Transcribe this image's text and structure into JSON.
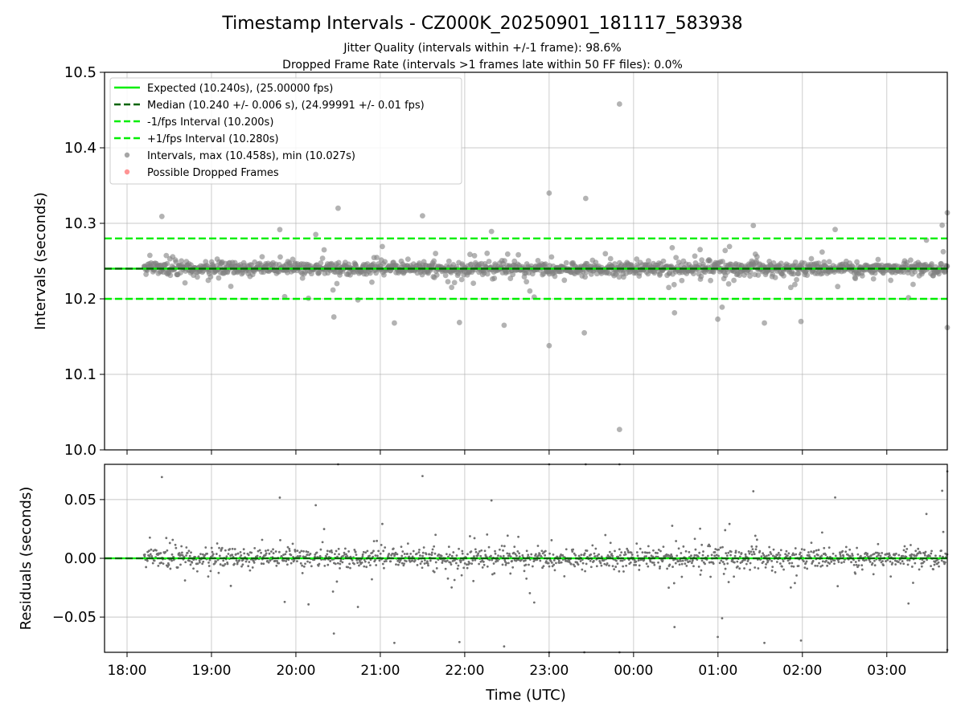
{
  "chart_data": [
    {
      "panel": "intervals",
      "type": "scatter",
      "title": "Timestamp Intervals - CZ000K_20250901_181117_583938",
      "subtitle_lines": [
        "Jitter Quality (intervals within +/-1 frame): 98.6%",
        "Dropped Frame Rate (intervals >1 frames late within 50 FF files): 0.0%"
      ],
      "xlabel": "",
      "ylabel": "Intervals (seconds)",
      "x_axis": "time (UTC)",
      "xlim": [
        "17:44",
        "03:43"
      ],
      "ylim": [
        10.0,
        10.5
      ],
      "yticks": [
        10.0,
        10.1,
        10.2,
        10.3,
        10.4,
        10.5
      ],
      "ytick_labels": [
        "10.0",
        "10.1",
        "10.2",
        "10.3",
        "10.4",
        "10.5"
      ],
      "xticks": [
        "18:00",
        "19:00",
        "20:00",
        "21:00",
        "22:00",
        "23:00",
        "00:00",
        "01:00",
        "02:00",
        "03:00"
      ],
      "grid": true,
      "legend_position": "upper left",
      "reference_lines": [
        {
          "label": "Expected (10.240s), (25.00000 fps)",
          "y": 10.24,
          "color": "#00ee00",
          "style": "solid"
        },
        {
          "label": "Median (10.240 +/- 0.006 s), (24.99991 +/- 0.01 fps)",
          "y": 10.24,
          "color": "#006400",
          "style": "dashed"
        },
        {
          "label": "-1/fps Interval (10.200s)",
          "y": 10.2,
          "color": "#00ee00",
          "style": "dashed"
        },
        {
          "label": "+1/fps Interval (10.280s)",
          "y": 10.28,
          "color": "#00ee00",
          "style": "dashed"
        }
      ],
      "scatter_series": [
        {
          "label": "Intervals, max (10.458s), min (10.027s)",
          "color": "#808080",
          "baseline": 10.24,
          "max": 10.458,
          "min": 10.027,
          "x_start": "18:12",
          "x_end": "03:43"
        },
        {
          "label": "Possible Dropped Frames",
          "color": "#ff6666",
          "count": 0
        }
      ],
      "notable_points": [
        {
          "x": "23:50",
          "y": 10.458
        },
        {
          "x": "23:50",
          "y": 10.027
        },
        {
          "x": "23:00",
          "y": 10.34
        },
        {
          "x": "23:00",
          "y": 10.138
        },
        {
          "x": "23:26",
          "y": 10.333
        },
        {
          "x": "20:30",
          "y": 10.32
        },
        {
          "x": "21:30",
          "y": 10.31
        },
        {
          "x": "20:27",
          "y": 10.176
        },
        {
          "x": "21:10",
          "y": 10.168
        },
        {
          "x": "22:28",
          "y": 10.165
        },
        {
          "x": "23:25",
          "y": 10.155
        },
        {
          "x": "00:25",
          "y": 10.215
        },
        {
          "x": "01:33",
          "y": 10.168
        },
        {
          "x": "01:59",
          "y": 10.17
        },
        {
          "x": "03:43",
          "y": 10.314
        },
        {
          "x": "03:43",
          "y": 10.162
        }
      ]
    },
    {
      "panel": "residuals",
      "type": "scatter",
      "xlabel": "Time (UTC)",
      "ylabel": "Residuals (seconds)",
      "ylim": [
        -0.08,
        0.08
      ],
      "yticks": [
        -0.05,
        0.0,
        0.05
      ],
      "ytick_labels": [
        "−0.05",
        "0.00",
        "0.05"
      ],
      "xticks": [
        "18:00",
        "19:00",
        "20:00",
        "21:00",
        "22:00",
        "23:00",
        "00:00",
        "01:00",
        "02:00",
        "03:00"
      ],
      "grid": true,
      "reference_lines": [
        {
          "y": 0.0,
          "color": "#00ee00",
          "style": "solid"
        },
        {
          "y": 0.0,
          "color": "#006400",
          "style": "dashed"
        }
      ],
      "series": [
        {
          "color": "#707070",
          "baseline": 0.0,
          "max": 0.08,
          "min": -0.077
        }
      ]
    }
  ]
}
